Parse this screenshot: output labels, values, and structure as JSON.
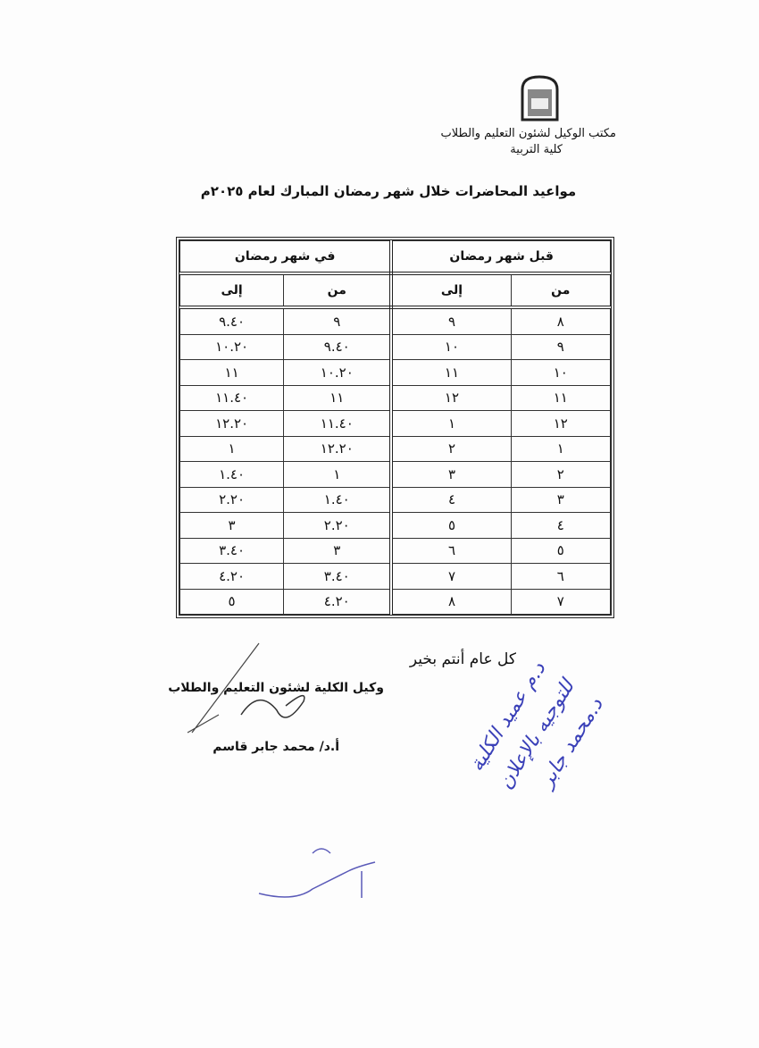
{
  "header": {
    "office": "مكتب الوكيل لشئون التعليم والطلاب",
    "faculty": "كلية التربية"
  },
  "title": "مواعيد المحاضرات خلال شهر رمضان المبارك لعام ٢٠٢٥م",
  "table": {
    "groups": [
      "قبل شهر رمضان",
      "في شهر رمضان"
    ],
    "columns": [
      "من",
      "إلى",
      "من",
      "إلى"
    ],
    "rows": [
      [
        "٨",
        "٩",
        "٩",
        "٩.٤٠"
      ],
      [
        "٩",
        "١٠",
        "٩.٤٠",
        "١٠.٢٠"
      ],
      [
        "١٠",
        "١١",
        "١٠.٢٠",
        "١١"
      ],
      [
        "١١",
        "١٢",
        "١١",
        "١١.٤٠"
      ],
      [
        "١٢",
        "١",
        "١١.٤٠",
        "١٢.٢٠"
      ],
      [
        "١",
        "٢",
        "١٢.٢٠",
        "١"
      ],
      [
        "٢",
        "٣",
        "١",
        "١.٤٠"
      ],
      [
        "٣",
        "٤",
        "١.٤٠",
        "٢.٢٠"
      ],
      [
        "٤",
        "٥",
        "٢.٢٠",
        "٣"
      ],
      [
        "٥",
        "٦",
        "٣",
        "٣.٤٠"
      ],
      [
        "٦",
        "٧",
        "٣.٤٠",
        "٤.٢٠"
      ],
      [
        "٧",
        "٨",
        "٤.٢٠",
        "٥"
      ]
    ]
  },
  "footer": {
    "greeting": "كل عام أنتم بخير",
    "signer_title": "وكيل الكلية لشئون التعليم والطلاب",
    "signer_name": "أ.د/ محمد جابر قاسم"
  },
  "handwritten_note": [
    "د.م عميد الكلية",
    "للتوجيه بالإعلان",
    "د.محمد جابر"
  ]
}
